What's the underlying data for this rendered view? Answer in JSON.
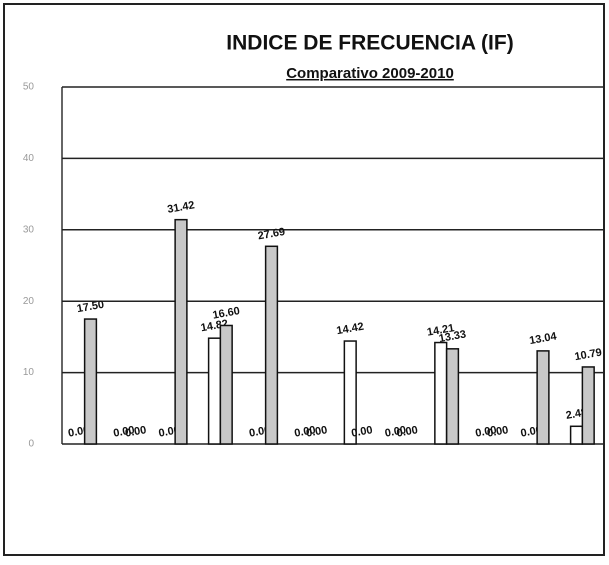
{
  "chart_data": {
    "type": "bar",
    "title": "INDICE DE FRECUENCIA (IF)",
    "subtitle": "Comparativo 2009-2010",
    "categories": [
      null,
      null,
      null,
      null,
      null,
      null,
      null,
      null,
      null,
      null,
      null,
      null
    ],
    "series": [
      {
        "color": "#ffffff",
        "values": [
          0,
          0,
          0,
          14.82,
          0,
          0,
          14.42,
          0,
          14.21,
          0,
          0,
          2.48
        ],
        "value_labels": [
          "0.00",
          "0.00",
          "0.00",
          "14.82",
          "0.00",
          "0.00",
          "14.42",
          "0.00",
          "14.21",
          "0.00",
          "0.00",
          "2.48"
        ]
      },
      {
        "color": "#c8c8c8",
        "values": [
          17.5,
          0,
          31.42,
          16.6,
          27.69,
          0,
          0,
          0,
          13.33,
          0,
          13.04,
          10.79
        ],
        "value_labels": [
          "17.50",
          "0.00",
          "31.42",
          "16.60",
          "27.69",
          "0.00",
          "0.00",
          "0.00",
          "13.33",
          "0.00",
          "13.04",
          "10.79"
        ]
      }
    ],
    "ylim": [
      0,
      50
    ],
    "yticks": [
      0,
      10,
      20,
      30,
      40,
      50
    ],
    "grid": true
  }
}
